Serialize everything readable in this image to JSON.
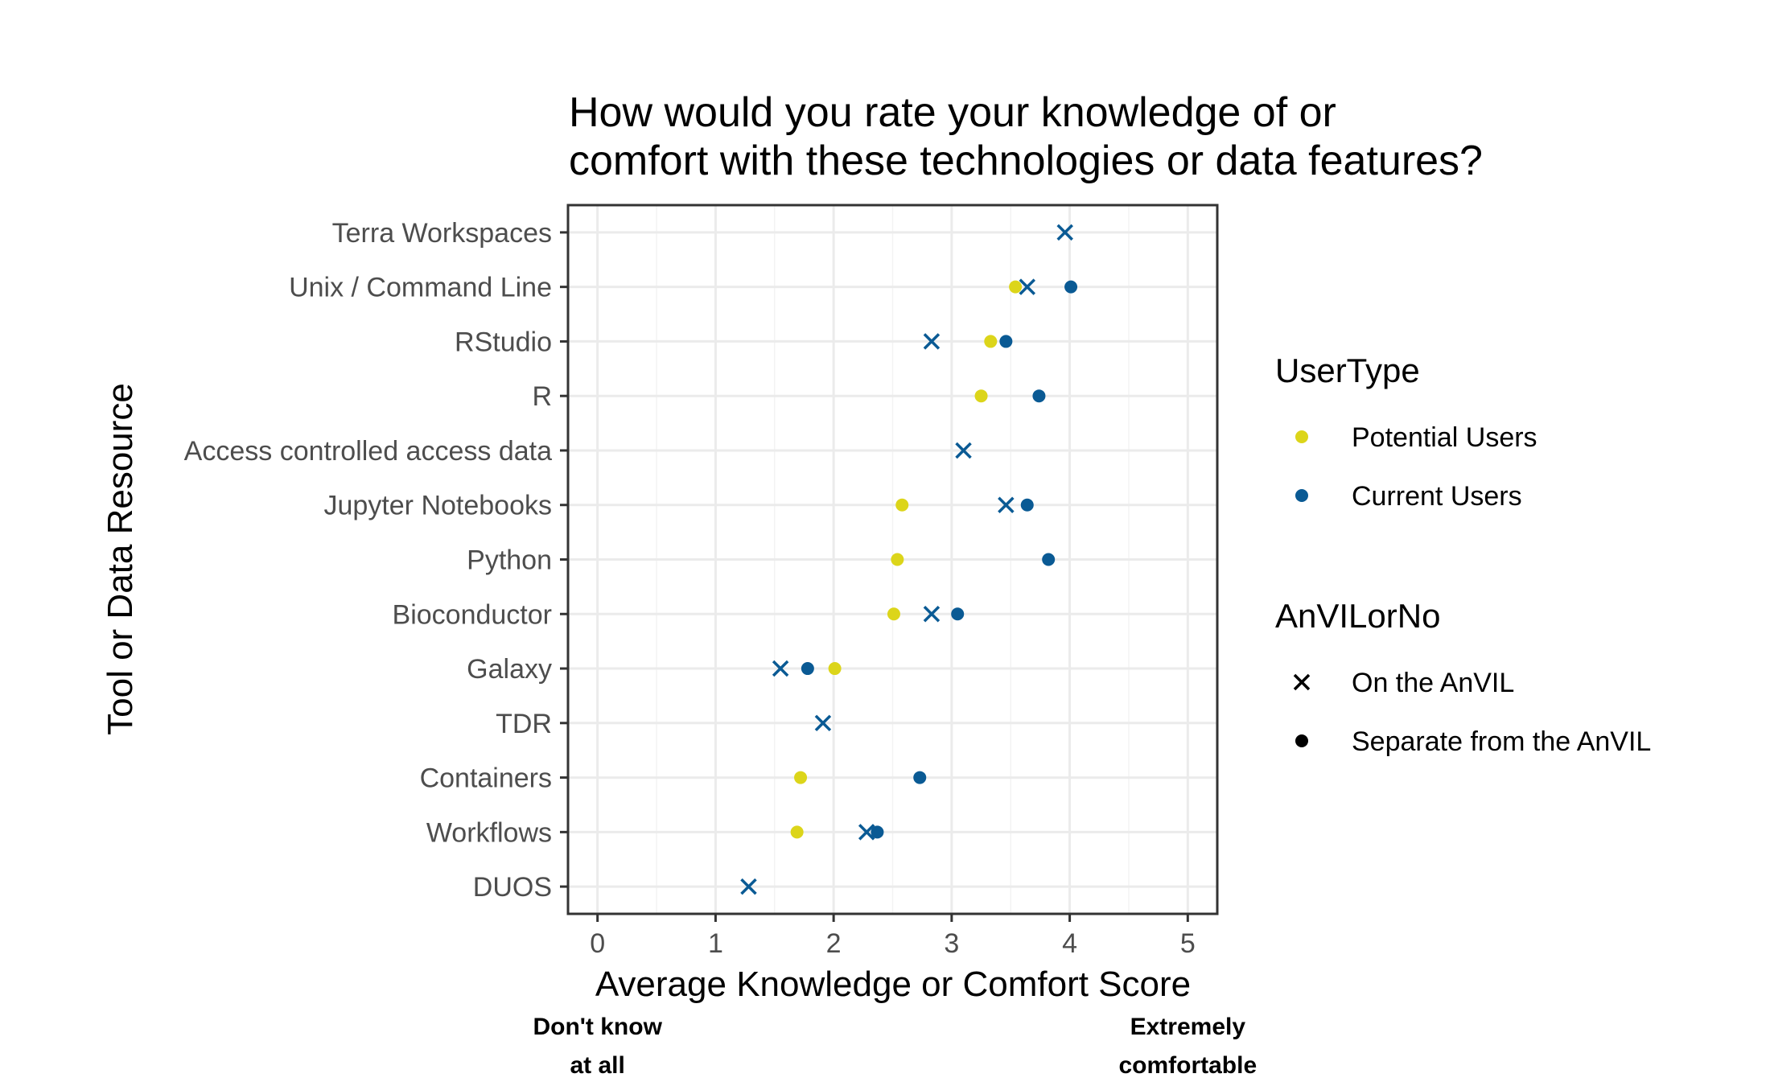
{
  "chart_data": {
    "type": "scatter",
    "title_lines": [
      "How would you rate your knowledge of or",
      "comfort with these technologies or data features?"
    ],
    "xlabel": "Average Knowledge or Comfort Score",
    "ylabel": "Tool or Data Resource",
    "xlim": [
      -0.25,
      5.25
    ],
    "x_ticks": [
      "0",
      "1",
      "2",
      "3",
      "4",
      "5"
    ],
    "grid": true,
    "categories": [
      "Terra Workspaces",
      "Unix / Command Line",
      "RStudio",
      "R",
      "Access controlled access data",
      "Jupyter Notebooks",
      "Python",
      "Bioconductor",
      "Galaxy",
      "TDR",
      "Containers",
      "Workflows",
      "DUOS"
    ],
    "colors": {
      "Potential Users": "#dcd51a",
      "Current Users": "#0a5a94"
    },
    "points": [
      {
        "category": "Terra Workspaces",
        "x": 3.96,
        "user_type": "Current Users",
        "anvil": "On the AnVIL"
      },
      {
        "category": "Unix / Command Line",
        "x": 3.54,
        "user_type": "Potential Users",
        "anvil": "Separate from the AnVIL"
      },
      {
        "category": "Unix / Command Line",
        "x": 3.64,
        "user_type": "Current Users",
        "anvil": "On the AnVIL"
      },
      {
        "category": "Unix / Command Line",
        "x": 4.01,
        "user_type": "Current Users",
        "anvil": "Separate from the AnVIL"
      },
      {
        "category": "RStudio",
        "x": 2.83,
        "user_type": "Current Users",
        "anvil": "On the AnVIL"
      },
      {
        "category": "RStudio",
        "x": 3.33,
        "user_type": "Potential Users",
        "anvil": "Separate from the AnVIL"
      },
      {
        "category": "RStudio",
        "x": 3.46,
        "user_type": "Current Users",
        "anvil": "Separate from the AnVIL"
      },
      {
        "category": "R",
        "x": 3.25,
        "user_type": "Potential Users",
        "anvil": "Separate from the AnVIL"
      },
      {
        "category": "R",
        "x": 3.74,
        "user_type": "Current Users",
        "anvil": "Separate from the AnVIL"
      },
      {
        "category": "Access controlled access data",
        "x": 3.1,
        "user_type": "Current Users",
        "anvil": "On the AnVIL"
      },
      {
        "category": "Jupyter Notebooks",
        "x": 2.58,
        "user_type": "Potential Users",
        "anvil": "Separate from the AnVIL"
      },
      {
        "category": "Jupyter Notebooks",
        "x": 3.46,
        "user_type": "Current Users",
        "anvil": "On the AnVIL"
      },
      {
        "category": "Jupyter Notebooks",
        "x": 3.64,
        "user_type": "Current Users",
        "anvil": "Separate from the AnVIL"
      },
      {
        "category": "Python",
        "x": 2.54,
        "user_type": "Potential Users",
        "anvil": "Separate from the AnVIL"
      },
      {
        "category": "Python",
        "x": 3.82,
        "user_type": "Current Users",
        "anvil": "Separate from the AnVIL"
      },
      {
        "category": "Bioconductor",
        "x": 2.51,
        "user_type": "Potential Users",
        "anvil": "Separate from the AnVIL"
      },
      {
        "category": "Bioconductor",
        "x": 2.83,
        "user_type": "Current Users",
        "anvil": "On the AnVIL"
      },
      {
        "category": "Bioconductor",
        "x": 3.05,
        "user_type": "Current Users",
        "anvil": "Separate from the AnVIL"
      },
      {
        "category": "Galaxy",
        "x": 1.55,
        "user_type": "Current Users",
        "anvil": "On the AnVIL"
      },
      {
        "category": "Galaxy",
        "x": 1.78,
        "user_type": "Current Users",
        "anvil": "Separate from the AnVIL"
      },
      {
        "category": "Galaxy",
        "x": 2.01,
        "user_type": "Potential Users",
        "anvil": "Separate from the AnVIL"
      },
      {
        "category": "TDR",
        "x": 1.91,
        "user_type": "Current Users",
        "anvil": "On the AnVIL"
      },
      {
        "category": "Containers",
        "x": 1.72,
        "user_type": "Potential Users",
        "anvil": "Separate from the AnVIL"
      },
      {
        "category": "Containers",
        "x": 2.73,
        "user_type": "Current Users",
        "anvil": "Separate from the AnVIL"
      },
      {
        "category": "Workflows",
        "x": 1.69,
        "user_type": "Potential Users",
        "anvil": "Separate from the AnVIL"
      },
      {
        "category": "Workflows",
        "x": 2.28,
        "user_type": "Current Users",
        "anvil": "On the AnVIL"
      },
      {
        "category": "Workflows",
        "x": 2.37,
        "user_type": "Current Users",
        "anvil": "Separate from the AnVIL"
      },
      {
        "category": "DUOS",
        "x": 1.28,
        "user_type": "Current Users",
        "anvil": "On the AnVIL"
      }
    ],
    "legend": [
      {
        "title": "UserType",
        "entries": [
          {
            "label": "Potential Users",
            "shape": "dot",
            "color": "#dcd51a"
          },
          {
            "label": "Current Users",
            "shape": "dot",
            "color": "#0a5a94"
          }
        ]
      },
      {
        "title": "AnVILorNo",
        "entries": [
          {
            "label": "On the AnVIL",
            "shape": "cross",
            "color": "#000000"
          },
          {
            "label": "Separate from the AnVIL",
            "shape": "dot",
            "color": "#000000"
          }
        ]
      }
    ],
    "legend_position": "right",
    "scale_anchors": [
      {
        "x": 0,
        "lines": [
          "Don't know",
          "at all"
        ]
      },
      {
        "x": 5,
        "lines": [
          "Extremely",
          "comfortable"
        ]
      }
    ]
  }
}
